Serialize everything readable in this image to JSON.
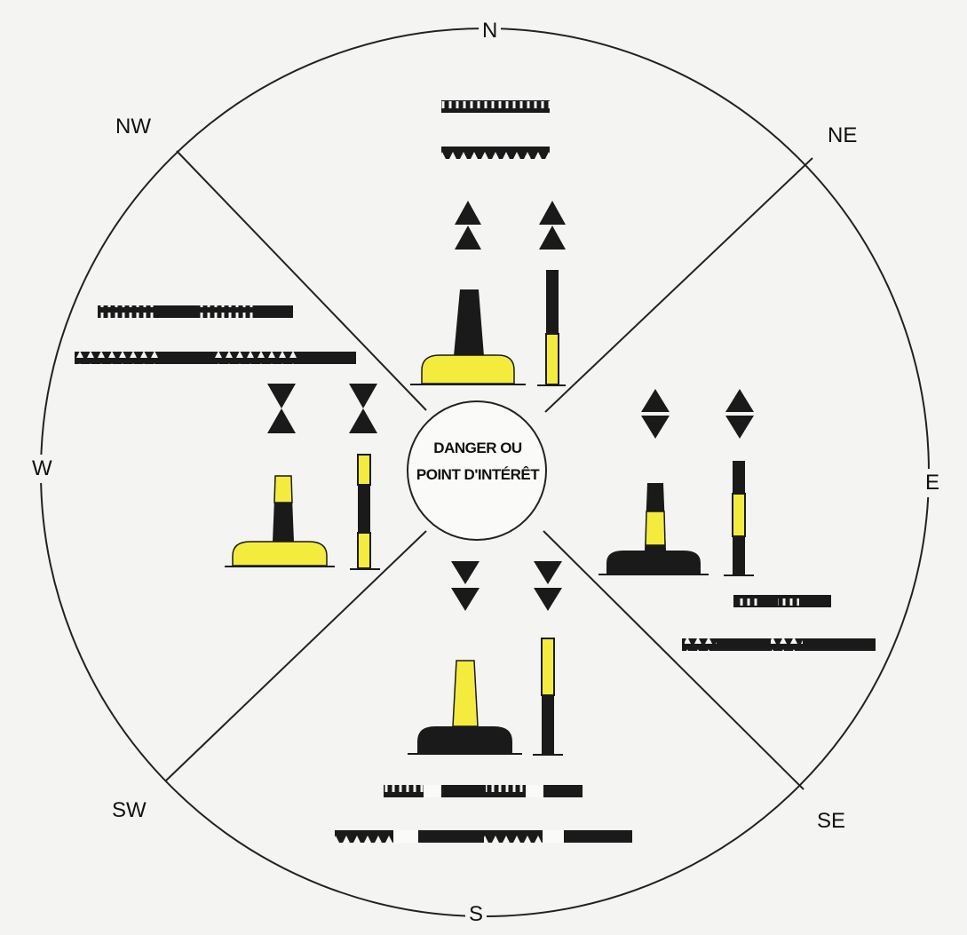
{
  "compass": {
    "n": "N",
    "ne": "NE",
    "e": "E",
    "se": "SE",
    "s": "S",
    "sw": "SW",
    "w": "W",
    "nw": "NW"
  },
  "center": {
    "line1": "DANGER OU",
    "line2": "POINT D'INTÉRÊT"
  },
  "colors": {
    "black": "#1a1a1a",
    "yellow": "#f4ec3c",
    "line": "#222222",
    "background": "#f4f4f2"
  },
  "cardinal_marks": [
    {
      "quadrant": "north",
      "topmark": "two cones pointing up",
      "body": "black over yellow",
      "light": "continuous quick / very quick flashing"
    },
    {
      "quadrant": "east",
      "topmark": "two cones base to base",
      "body": "black-yellow-black",
      "light": "3 flashes"
    },
    {
      "quadrant": "south",
      "topmark": "two cones pointing down",
      "body": "yellow over black",
      "light": "6 flashes + long flash"
    },
    {
      "quadrant": "west",
      "topmark": "two cones point to point",
      "body": "yellow-black-yellow",
      "light": "9 flashes"
    }
  ]
}
